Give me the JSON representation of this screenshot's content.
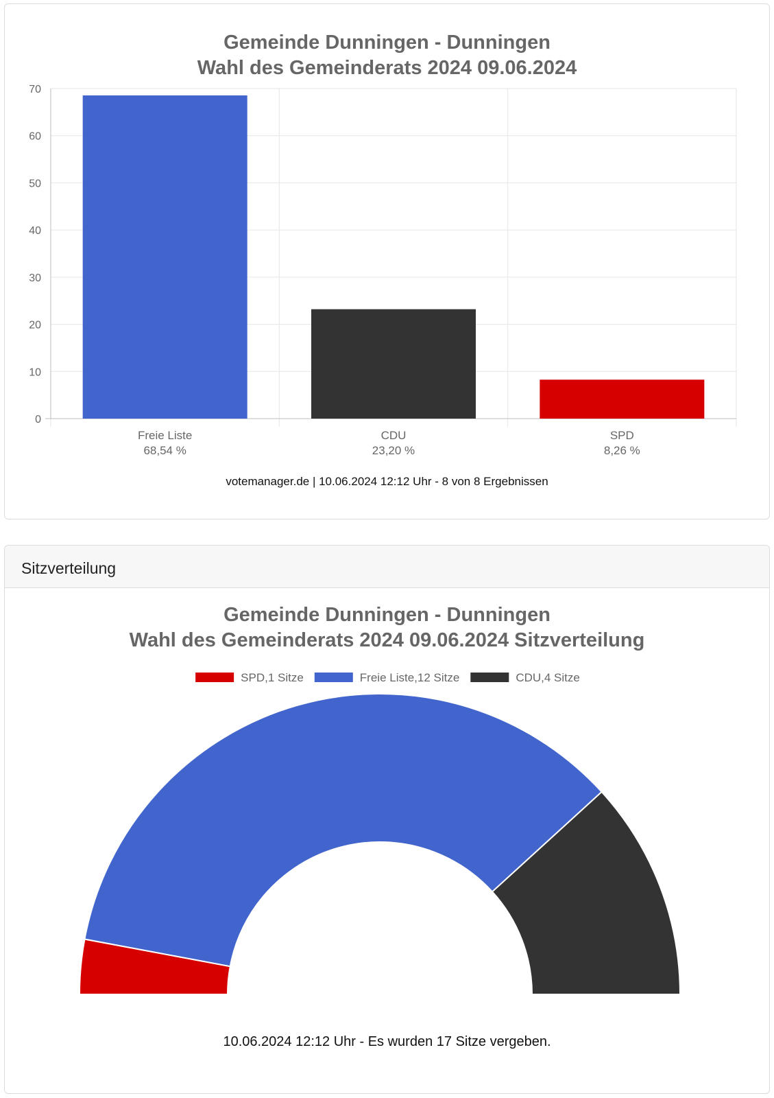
{
  "chart_data": [
    {
      "type": "bar",
      "title_line1": "Gemeinde Dunningen - Dunningen",
      "title_line2": "Wahl des Gemeinderats 2024 09.06.2024",
      "categories": [
        "Freie Liste",
        "CDU",
        "SPD"
      ],
      "category_labels": [
        "68,54 %",
        "23,20 %",
        "8,26 %"
      ],
      "values": [
        68.54,
        23.2,
        8.26
      ],
      "colors": [
        "#4165cd",
        "#333333",
        "#d60000"
      ],
      "ylim": [
        0,
        70
      ],
      "yticks": [
        "0",
        "10",
        "20",
        "30",
        "40",
        "50",
        "60",
        "70"
      ],
      "grid": true,
      "footnote": "votemanager.de | 10.06.2024 12:12 Uhr - 8 von 8 Ergebnissen"
    },
    {
      "type": "pie",
      "variant": "semicircle-donut",
      "title_line1": "Gemeinde Dunningen - Dunningen",
      "title_line2": "Wahl des Gemeinderats 2024 09.06.2024 Sitzverteilung",
      "legend_position": "top",
      "slices": [
        {
          "legend": "SPD,1 Sitze",
          "value": 1,
          "color": "#d60000"
        },
        {
          "legend": "Freie Liste,12 Sitze",
          "value": 12,
          "color": "#4165cd"
        },
        {
          "legend": "CDU,4 Sitze",
          "value": 4,
          "color": "#333333"
        }
      ],
      "footnote": "10.06.2024 12:12 Uhr - Es wurden 17 Sitze vergeben."
    }
  ],
  "seat_panel": {
    "header": "Sitzverteilung"
  }
}
